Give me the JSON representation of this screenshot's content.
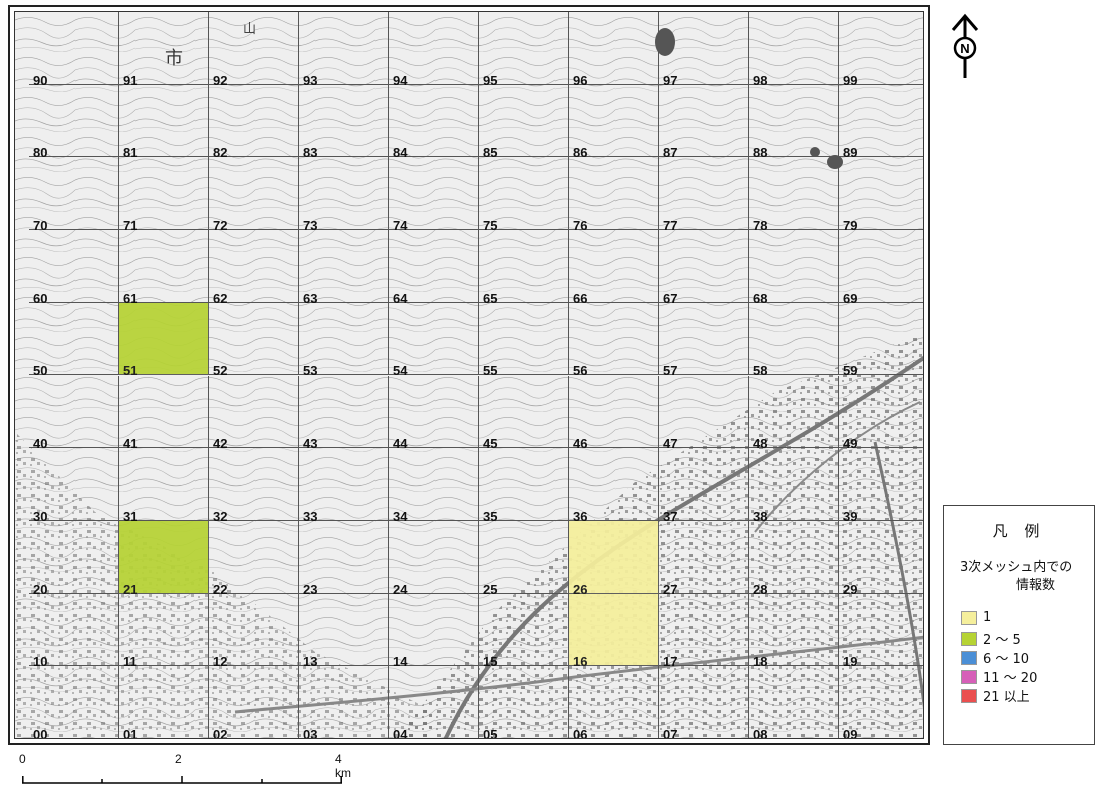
{
  "map": {
    "grid": {
      "rows": [
        [
          "90",
          "91",
          "92",
          "93",
          "94",
          "95",
          "96",
          "97",
          "98",
          "99"
        ],
        [
          "80",
          "81",
          "82",
          "83",
          "84",
          "85",
          "86",
          "87",
          "88",
          "89"
        ],
        [
          "70",
          "71",
          "72",
          "73",
          "74",
          "75",
          "76",
          "77",
          "78",
          "79"
        ],
        [
          "60",
          "61",
          "62",
          "63",
          "64",
          "65",
          "66",
          "67",
          "68",
          "69"
        ],
        [
          "50",
          "51",
          "52",
          "53",
          "54",
          "55",
          "56",
          "57",
          "58",
          "59"
        ],
        [
          "40",
          "41",
          "42",
          "43",
          "44",
          "45",
          "46",
          "47",
          "48",
          "49"
        ],
        [
          "30",
          "31",
          "32",
          "33",
          "34",
          "35",
          "36",
          "37",
          "38",
          "39"
        ],
        [
          "20",
          "21",
          "22",
          "23",
          "24",
          "25",
          "26",
          "27",
          "28",
          "29"
        ],
        [
          "10",
          "11",
          "12",
          "13",
          "14",
          "15",
          "16",
          "17",
          "18",
          "19"
        ],
        [
          "00",
          "01",
          "02",
          "03",
          "04",
          "05",
          "06",
          "07",
          "08",
          "09"
        ]
      ],
      "highlighted": [
        {
          "mesh": "51",
          "category": "2 ～ 5"
        },
        {
          "mesh": "21",
          "category": "2 ～ 5"
        },
        {
          "mesh": "26",
          "category": "1"
        },
        {
          "mesh": "16",
          "category": "1"
        }
      ]
    },
    "map_text": {
      "city_label": "市",
      "mountain_label": "山"
    },
    "compass": {
      "letter": "N"
    }
  },
  "legend": {
    "title": "凡 例",
    "subtitle_line1": "3次メッシュ内での",
    "subtitle_line2": "情報数",
    "items": [
      {
        "label": "1",
        "color": "#f5ef9c"
      },
      {
        "label": "2 ～ 5",
        "color": "#b6d334"
      },
      {
        "label": "6 ～ 10",
        "color": "#4b8fd6"
      },
      {
        "label": "11 ～ 20",
        "color": "#d65fb8"
      },
      {
        "label": "21 以上",
        "color": "#ea4f4f"
      }
    ]
  },
  "scale": {
    "labels": [
      "0",
      "2",
      "4 km"
    ]
  }
}
